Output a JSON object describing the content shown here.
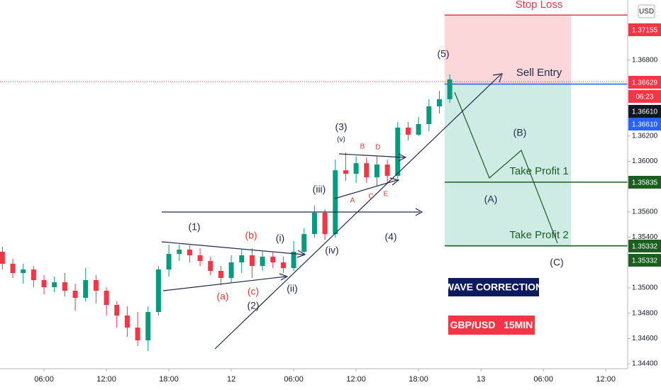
{
  "chart_data": {
    "type": "candlestick",
    "currency": "USD",
    "up_color": "#089981",
    "down_color": "#f23645",
    "x": [
      2,
      3,
      4,
      5,
      6,
      7,
      8,
      9,
      10,
      11,
      12,
      13,
      14,
      15,
      16,
      17,
      18,
      19,
      20,
      21,
      22,
      23,
      24,
      25,
      26,
      27,
      28,
      29,
      30,
      31,
      32,
      33,
      34,
      35,
      36,
      37,
      38,
      39,
      40,
      41,
      42,
      43,
      44,
      45
    ],
    "open": [
      1.35285,
      1.3519,
      1.35117,
      1.35145,
      1.35061,
      1.35005,
      1.35044,
      1.34977,
      1.34921,
      1.35061,
      1.34977,
      1.34865,
      1.34781,
      1.34686,
      1.34585,
      1.34809,
      1.35145,
      1.35268,
      1.35302,
      1.35257,
      1.35212,
      1.35134,
      1.35078,
      1.35201,
      1.35257,
      1.35173,
      1.35246,
      1.35201,
      1.35156,
      1.35285,
      1.35425,
      1.35593,
      1.35425,
      1.35929,
      1.35901,
      1.35985,
      1.35873,
      1.35974,
      1.35885,
      1.36266,
      1.3621,
      1.36294,
      1.36434,
      1.3649
    ],
    "high": [
      1.35324,
      1.35229,
      1.3519,
      1.35173,
      1.351,
      1.35089,
      1.35117,
      1.35033,
      1.35156,
      1.351,
      1.35005,
      1.34893,
      1.34854,
      1.34809,
      1.34854,
      1.35173,
      1.35341,
      1.35341,
      1.35336,
      1.35313,
      1.35246,
      1.35173,
      1.35257,
      1.35302,
      1.35313,
      1.35285,
      1.3528,
      1.35246,
      1.35369,
      1.3547,
      1.35649,
      1.35621,
      1.36013,
      1.36069,
      1.36041,
      1.3603,
      1.36041,
      1.36013,
      1.3631,
      1.3631,
      1.3635,
      1.3649,
      1.36557,
      1.36686
    ],
    "low": [
      1.35145,
      1.35078,
      1.35033,
      1.35005,
      1.34949,
      1.34966,
      1.34932,
      1.3482,
      1.34893,
      1.34876,
      1.34781,
      1.34686,
      1.34613,
      1.3454,
      1.34501,
      1.34781,
      1.35089,
      1.35212,
      1.35201,
      1.35173,
      1.351,
      1.35022,
      1.35044,
      1.35117,
      1.35078,
      1.35134,
      1.35156,
      1.35117,
      1.35134,
      1.35257,
      1.35397,
      1.3538,
      1.35397,
      1.35845,
      1.35829,
      1.35829,
      1.35806,
      1.35829,
      1.35862,
      1.36165,
      1.36198,
      1.36238,
      1.36378,
      1.36462
    ],
    "close": [
      1.3519,
      1.35117,
      1.35145,
      1.35061,
      1.35005,
      1.35044,
      1.34977,
      1.34921,
      1.35061,
      1.34977,
      1.34865,
      1.34781,
      1.34686,
      1.34585,
      1.34809,
      1.35145,
      1.35268,
      1.35302,
      1.35257,
      1.35212,
      1.35134,
      1.35078,
      1.35201,
      1.35257,
      1.35173,
      1.35246,
      1.35201,
      1.35156,
      1.35285,
      1.35425,
      1.35593,
      1.35425,
      1.35929,
      1.35901,
      1.35985,
      1.35873,
      1.35974,
      1.35885,
      1.36266,
      1.3621,
      1.36294,
      1.36434,
      1.3649,
      1.36647
    ],
    "xlim": [
      1.77,
      62.1
    ],
    "xticks": [
      {
        "value": 6,
        "label": "06:00"
      },
      {
        "value": 12,
        "label": "12:00"
      },
      {
        "value": 18,
        "label": "18:00"
      },
      {
        "value": 24,
        "label": "12"
      },
      {
        "value": 30,
        "label": "06:00"
      },
      {
        "value": 36,
        "label": "12:00"
      },
      {
        "value": 42,
        "label": "18:00"
      },
      {
        "value": 48,
        "label": "13"
      },
      {
        "value": 54,
        "label": "06:00"
      },
      {
        "value": 60,
        "label": "12:00"
      }
    ],
    "ylim": [
      1.34361,
      1.37274
    ],
    "yticks": [
      {
        "value": 1.344,
        "label": "1.34400"
      },
      {
        "value": 1.346,
        "label": "1.34600"
      },
      {
        "value": 1.348,
        "label": "1.34800"
      },
      {
        "value": 1.35,
        "label": "1.35000"
      },
      {
        "value": 1.354,
        "label": "1.35400"
      },
      {
        "value": 1.356,
        "label": "1.35600"
      },
      {
        "value": 1.36,
        "label": "1.36000"
      },
      {
        "value": 1.362,
        "label": "1.36200"
      },
      {
        "value": 1.368,
        "label": "1.36800"
      }
    ],
    "last_price": 1.36629,
    "levels": [
      {
        "name": "Stop Loss",
        "value": 1.37155,
        "color": "#f23645"
      },
      {
        "name": "Sell Entry",
        "value": 1.3661,
        "color": "#2962ff"
      },
      {
        "name": "Take Profit 1",
        "value": 1.35835,
        "color": "#1b5e20"
      },
      {
        "name": "Take Profit 2",
        "value": 1.35332,
        "color": "#1b5e20"
      }
    ],
    "axis_badges": [
      {
        "value": 1.37155,
        "color": "#f23645"
      },
      {
        "value": 1.36629,
        "color": "#f23645"
      },
      {
        "label": "06:23",
        "color": "#f23645"
      },
      {
        "value": 1.3661,
        "label": "1.36610",
        "color": "#131722"
      },
      {
        "value": 1.3661,
        "label": "1.36610",
        "color": "#2962ff"
      },
      {
        "value": 1.35835,
        "color": "#1b5e20"
      },
      {
        "value": 1.35332,
        "color": "#1b5e20"
      },
      {
        "value": 1.35332,
        "color": "#1b5e20"
      }
    ],
    "annotations": [
      "(1)",
      "(2)",
      "(3)",
      "(4)",
      "(5)",
      "(a)",
      "(b)",
      "(c)",
      "(i)",
      "(ii)",
      "(iii)",
      "(iv)",
      "(v)",
      "A",
      "B",
      "C",
      "D",
      "E",
      "(A)",
      "(B)",
      "(C)"
    ],
    "boxes": [
      {
        "text": "WAVE CORRECTION",
        "color": "#0d1b5e"
      },
      {
        "text": "GBP/USD   15MIN",
        "color": "#f23645"
      }
    ]
  }
}
